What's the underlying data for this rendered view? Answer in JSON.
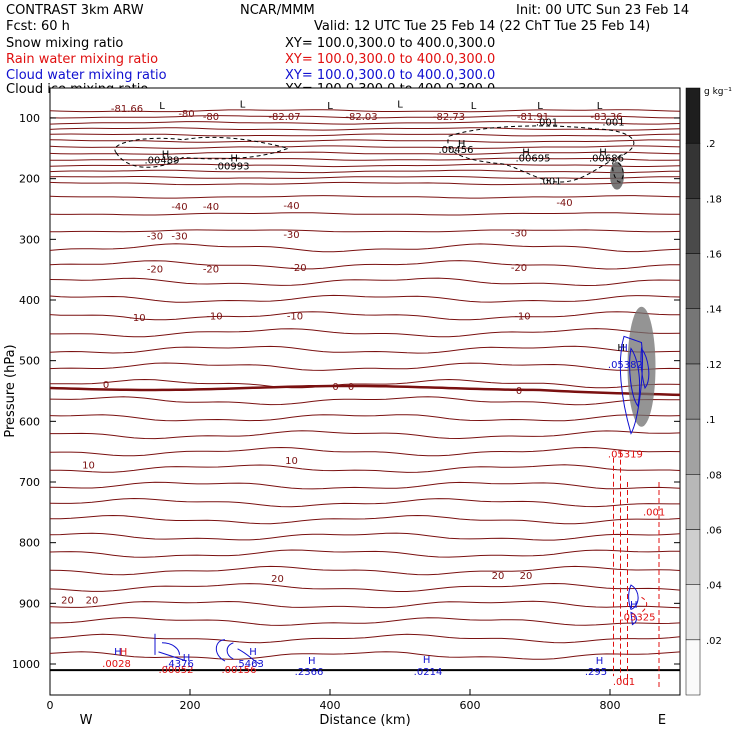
{
  "header": {
    "left_1": "CONTRAST  3km ARW",
    "center_1": "NCAR/MMM",
    "right_1": "Init: 00 UTC Sun 23 Feb 14",
    "left_2": "Fcst:    60 h",
    "right_2": "Valid: 12 UTC Tue 25 Feb 14 (22 ChT Tue 25 Feb 14)"
  },
  "fields": [
    {
      "name": "Snow mixing ratio",
      "xy": "XY=  100.0,300.0  to  400.0,300.0",
      "color": "#000000"
    },
    {
      "name": "Rain water mixing ratio",
      "xy": "XY=  100.0,300.0  to  400.0,300.0",
      "color": "#e01010"
    },
    {
      "name": "Cloud water mixing ratio",
      "xy": "XY=  100.0,300.0  to  400.0,300.0",
      "color": "#1010d0"
    },
    {
      "name": "Cloud ice mixing ratio",
      "xy": "XY=  100.0,300.0  to  400.0,300.0",
      "color": "#000000"
    }
  ],
  "chart_data": {
    "type": "cross-section contour",
    "xlabel": "Distance (km)",
    "ylabel": "Pressure (hPa)",
    "xlim": [
      0,
      900
    ],
    "ylim": [
      1050,
      50
    ],
    "x_ticks": [
      "0",
      "200",
      "400",
      "600",
      "800"
    ],
    "x_tick_values": [
      0,
      200,
      400,
      600,
      800
    ],
    "y_ticks": [
      "100",
      "200",
      "300",
      "400",
      "500",
      "600",
      "700",
      "800",
      "900",
      "1000"
    ],
    "y_tick_values": [
      100,
      200,
      300,
      400,
      500,
      600,
      700,
      800,
      900,
      1000
    ],
    "endpoints": {
      "left": "W",
      "right": "E"
    },
    "colorbar": {
      "unit": "g kg⁻¹",
      "min": 0,
      "max": 0.22,
      "labels": [
        ".2",
        ".18",
        ".16",
        ".14",
        ".12",
        ".1",
        ".08",
        ".06",
        ".04",
        ".02"
      ],
      "label_values": [
        0.2,
        0.18,
        0.16,
        0.14,
        0.12,
        0.1,
        0.08,
        0.06,
        0.04,
        0.02
      ]
    },
    "temperature_labels": [
      {
        "text": "-81.66",
        "x": 110,
        "p": 90
      },
      {
        "text": "-80",
        "x": 195,
        "p": 98
      },
      {
        "text": "-80",
        "x": 230,
        "p": 103
      },
      {
        "text": "-82.07",
        "x": 335,
        "p": 103
      },
      {
        "text": "-82.03",
        "x": 445,
        "p": 103
      },
      {
        "text": "-82.73",
        "x": 570,
        "p": 103
      },
      {
        "text": "-81.91",
        "x": 690,
        "p": 103
      },
      {
        "text": "-83.36",
        "x": 795,
        "p": 103
      },
      {
        "text": "-40",
        "x": 185,
        "p": 252
      },
      {
        "text": "-40",
        "x": 230,
        "p": 252
      },
      {
        "text": "-40",
        "x": 345,
        "p": 250
      },
      {
        "text": "-40",
        "x": 735,
        "p": 245
      },
      {
        "text": "-30",
        "x": 150,
        "p": 300
      },
      {
        "text": "-30",
        "x": 185,
        "p": 300
      },
      {
        "text": "-30",
        "x": 345,
        "p": 298
      },
      {
        "text": "-30",
        "x": 670,
        "p": 295
      },
      {
        "text": "-20",
        "x": 150,
        "p": 355
      },
      {
        "text": "-20",
        "x": 230,
        "p": 355
      },
      {
        "text": "-20",
        "x": 355,
        "p": 352
      },
      {
        "text": "-20",
        "x": 670,
        "p": 352
      },
      {
        "text": "-10",
        "x": 125,
        "p": 435
      },
      {
        "text": "-10",
        "x": 235,
        "p": 432
      },
      {
        "text": "-10",
        "x": 350,
        "p": 432
      },
      {
        "text": "-10",
        "x": 675,
        "p": 432
      },
      {
        "text": "0",
        "x": 80,
        "p": 545
      },
      {
        "text": "0",
        "x": 408,
        "p": 548
      },
      {
        "text": "0",
        "x": 430,
        "p": 548
      },
      {
        "text": "0",
        "x": 670,
        "p": 555
      },
      {
        "text": "10",
        "x": 55,
        "p": 678
      },
      {
        "text": "10",
        "x": 345,
        "p": 670
      },
      {
        "text": "20",
        "x": 325,
        "p": 865
      },
      {
        "text": "20",
        "x": 640,
        "p": 860
      },
      {
        "text": "20",
        "x": 680,
        "p": 860
      },
      {
        "text": "20",
        "x": 25,
        "p": 900
      },
      {
        "text": "20",
        "x": 60,
        "p": 900
      }
    ],
    "snow_labels": [
      {
        "text": ".001",
        "x": 710,
        "p": 112
      },
      {
        "text": ".001",
        "x": 805,
        "p": 112
      },
      {
        "text": ".001",
        "x": 715,
        "p": 210
      },
      {
        "text": "L",
        "x": 160,
        "p": 85
      },
      {
        "text": "L",
        "x": 275,
        "p": 83
      },
      {
        "text": "L",
        "x": 400,
        "p": 85
      },
      {
        "text": "L",
        "x": 500,
        "p": 83
      },
      {
        "text": "L",
        "x": 605,
        "p": 85
      },
      {
        "text": "L",
        "x": 700,
        "p": 85
      },
      {
        "text": "L",
        "x": 785,
        "p": 85
      }
    ],
    "ice_labels": [
      {
        "text": ".00489",
        "x": 160,
        "p": 175
      },
      {
        "text": ".00993",
        "x": 260,
        "p": 185
      },
      {
        "text": ".00456",
        "x": 580,
        "p": 158
      },
      {
        "text": ".00695",
        "x": 690,
        "p": 172
      },
      {
        "text": ".00686",
        "x": 795,
        "p": 172
      }
    ],
    "rain_labels": [
      {
        "text": ".05319",
        "x": 822,
        "p": 660
      },
      {
        "text": ".001",
        "x": 863,
        "p": 755
      },
      {
        "text": ".03325",
        "x": 840,
        "p": 928
      },
      {
        "text": ".0028",
        "x": 95,
        "p": 1005
      },
      {
        "text": ".00052",
        "x": 180,
        "p": 1015
      },
      {
        "text": ".00156",
        "x": 270,
        "p": 1015
      },
      {
        "text": ".001",
        "x": 820,
        "p": 1035
      }
    ],
    "cloud_labels": [
      {
        "text": ".4376",
        "x": 185,
        "p": 1005
      },
      {
        "text": ".5463",
        "x": 285,
        "p": 1005
      },
      {
        "text": ".2366",
        "x": 370,
        "p": 1018
      },
      {
        "text": ".0214",
        "x": 540,
        "p": 1018
      },
      {
        "text": ".295",
        "x": 780,
        "p": 1018
      },
      {
        "text": ".05382",
        "x": 822,
        "p": 512
      }
    ],
    "h_markers": [
      {
        "x": 165,
        "p": 165,
        "color": "#000000"
      },
      {
        "x": 263,
        "p": 172,
        "color": "#000000"
      },
      {
        "x": 588,
        "p": 148,
        "color": "#000000"
      },
      {
        "x": 680,
        "p": 162,
        "color": "#000000"
      },
      {
        "x": 790,
        "p": 162,
        "color": "#000000"
      },
      {
        "x": 97,
        "p": 985,
        "color": "#1010d0"
      },
      {
        "x": 105,
        "p": 985,
        "color": "#e01010"
      },
      {
        "x": 195,
        "p": 995,
        "color": "#1010d0"
      },
      {
        "x": 290,
        "p": 985,
        "color": "#1010d0"
      },
      {
        "x": 374,
        "p": 1000,
        "color": "#1010d0"
      },
      {
        "x": 538,
        "p": 998,
        "color": "#1010d0"
      },
      {
        "x": 785,
        "p": 1000,
        "color": "#1010d0"
      },
      {
        "x": 816,
        "p": 484,
        "color": "#000000"
      },
      {
        "x": 820,
        "p": 484,
        "color": "#1010d0"
      },
      {
        "x": 834,
        "p": 908,
        "color": "#1010d0"
      }
    ]
  }
}
